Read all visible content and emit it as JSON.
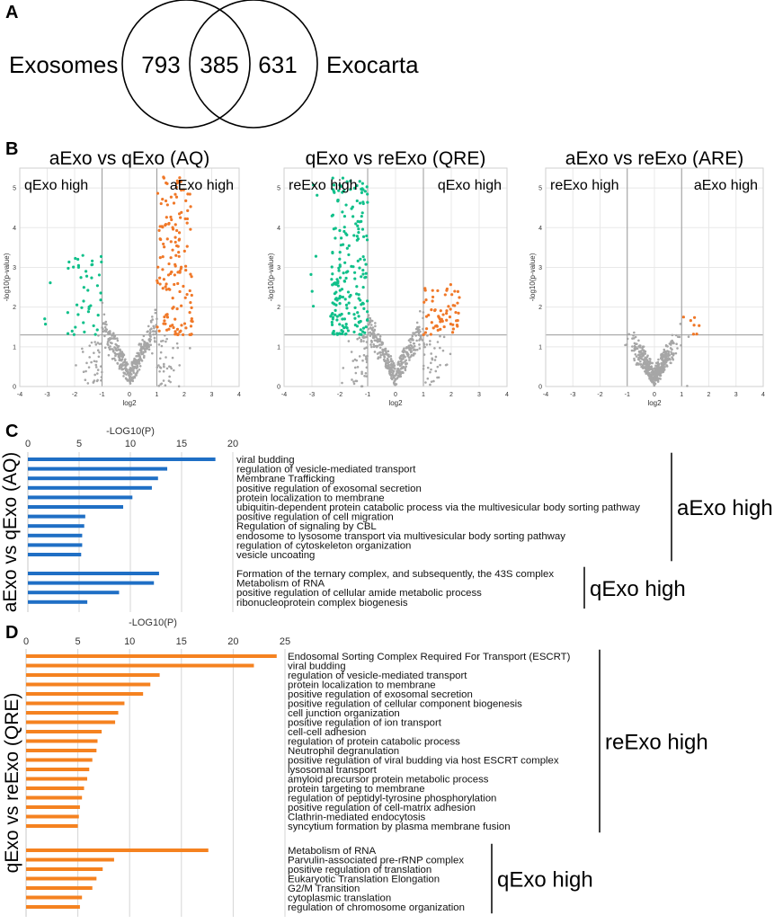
{
  "panels": {
    "A": "A",
    "B": "B",
    "C": "C",
    "D": "D"
  },
  "colors": {
    "blue": "#1f6fc5",
    "orange": "#f58220",
    "green": "#10c08a",
    "grey": "#a6a6a6",
    "orange_dot": "#f07828"
  },
  "venn": {
    "left_label": "Exosomes",
    "right_label": "Exocarta",
    "left_only": "793",
    "overlap": "385",
    "right_only": "631"
  },
  "volcanoes": [
    {
      "title": "aExo vs qExo (AQ)",
      "left_label": "qExo high",
      "right_label": "aExo high",
      "xlabel": "log2",
      "ylabel": "-log10(p-value)",
      "x_ticks": [
        "-4",
        "-3",
        "-2",
        "-1",
        "0",
        "1",
        "2",
        "3",
        "4"
      ],
      "y_ticks": [
        "0",
        "1",
        "2",
        "3",
        "4",
        "5"
      ],
      "xlim": [
        -4,
        4
      ],
      "ylim": [
        0,
        5.5
      ],
      "fc_threshold": 1,
      "p_threshold": 1.3,
      "spread": 1,
      "n_left": 45,
      "n_right": 150,
      "left_ymax": 3.4,
      "right_ymax": 5.3
    },
    {
      "title": "qExo vs reExo (QRE)",
      "left_label": "reExo high",
      "right_label": "qExo high",
      "xlabel": "log2",
      "ylabel": "-log10(p-value)",
      "x_ticks": [
        "-4",
        "-3",
        "-2",
        "-1",
        "0",
        "1",
        "2",
        "3",
        "4"
      ],
      "y_ticks": [
        "0",
        "1",
        "2",
        "3",
        "4",
        "5"
      ],
      "xlim": [
        -4,
        4
      ],
      "ylim": [
        0,
        5.5
      ],
      "fc_threshold": 1,
      "p_threshold": 1.3,
      "spread": 1,
      "n_left": 220,
      "n_right": 60,
      "left_ymax": 5.3,
      "right_ymax": 2.6
    },
    {
      "title": "aExo vs reExo (ARE)",
      "left_label": "reExo high",
      "right_label": "aExo high",
      "xlabel": "log2",
      "ylabel": "-log10(p-value)",
      "x_ticks": [
        "-4",
        "-3",
        "-2",
        "-1",
        "0",
        "1",
        "2",
        "3",
        "4"
      ],
      "y_ticks": [
        "0",
        "1",
        "2",
        "3",
        "4",
        "5"
      ],
      "xlim": [
        -4,
        4
      ],
      "ylim": [
        0,
        5.5
      ],
      "fc_threshold": 1,
      "p_threshold": 1.3,
      "spread": 0.55,
      "n_left": 0,
      "n_right": 7,
      "left_ymax": 0,
      "right_ymax": 1.9
    }
  ],
  "chart_data": [
    {
      "type": "bar",
      "orientation": "horizontal",
      "title": "-LOG10(P)",
      "row_label": "aExo vs qExo (AQ)",
      "x_ticks": [
        "0",
        "5",
        "10",
        "15",
        "20"
      ],
      "xlim": [
        0,
        20
      ],
      "groups": [
        {
          "name": "aExo high",
          "categories": [
            "viral budding",
            "regulation of vesicle-mediated transport",
            "Membrane Trafficking",
            "positive regulation of exosomal secretion",
            "protein localization to membrane",
            "ubiquitin-dependent protein catabolic process via the multivesicular body sorting pathway",
            "positive regulation of cell migration",
            "Regulation of signaling by CBL",
            "endosome to lysosome transport via multivesicular body sorting pathway",
            "regulation of cytoskeleton organization",
            "vesicle uncoating"
          ],
          "values": [
            18.3,
            13.6,
            12.7,
            12.1,
            10.2,
            9.3,
            5.6,
            5.5,
            5.3,
            5.3,
            5.2
          ]
        },
        {
          "name": "qExo high",
          "categories": [
            "Formation of the ternary complex, and subsequently, the 43S complex",
            "Metabolism of RNA",
            "positive regulation of cellular amide metabolic process",
            "ribonucleoprotein complex biogenesis"
          ],
          "values": [
            12.8,
            12.3,
            8.9,
            5.8
          ]
        }
      ]
    },
    {
      "type": "bar",
      "orientation": "horizontal",
      "title": "-LOG10(P)",
      "row_label": "qExo vs reExo (QRE)",
      "x_ticks": [
        "0",
        "5",
        "10",
        "15",
        "20",
        "25"
      ],
      "xlim": [
        0,
        25
      ],
      "groups": [
        {
          "name": "reExo high",
          "categories": [
            "Endosomal Sorting Complex Required For Transport (ESCRT)",
            "viral budding",
            "regulation of vesicle-mediated transport",
            "protein localization to membrane",
            "positive regulation of exosomal secretion",
            "positive regulation of cellular component biogenesis",
            "cell junction organization",
            "positive regulation of ion transport",
            "cell-cell adhesion",
            "regulation of protein catabolic process",
            "Neutrophil degranulation",
            "positive regulation of viral budding via host ESCRT complex",
            "lysosomal transport",
            "amyloid precursor protein metabolic process",
            "protein targeting to membrane",
            "regulation of peptidyl-tyrosine phosphorylation",
            "positive regulation of cell-matrix adhesion",
            "Clathrin-mediated endocytosis",
            "syncytium formation by plasma membrane fusion"
          ],
          "values": [
            24.2,
            22.0,
            12.9,
            12.0,
            11.3,
            9.5,
            8.9,
            8.6,
            7.3,
            6.9,
            6.8,
            6.4,
            6.1,
            5.9,
            5.6,
            5.4,
            5.2,
            5.1,
            5.0
          ]
        },
        {
          "name": "qExo high",
          "categories": [
            "Metabolism of RNA",
            "Parvulin-associated pre-rRNP complex",
            "positive regulation of translation",
            "Eukaryotic Translation Elongation",
            "G2/M Transition",
            "cytoplasmic translation",
            "regulation of chromosome organization"
          ],
          "values": [
            17.6,
            8.5,
            7.4,
            6.8,
            6.4,
            5.4,
            5.2
          ]
        }
      ]
    }
  ]
}
